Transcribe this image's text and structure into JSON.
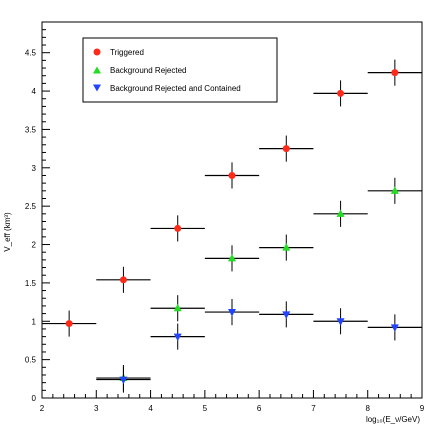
{
  "chart_data": {
    "type": "scatter",
    "xlabel": "log₁₀(E_ν/GeV)",
    "ylabel": "V_eff (km³)",
    "xlim": [
      2,
      9
    ],
    "ylim": [
      0,
      4.9
    ],
    "x_ticks": [
      "2",
      "3",
      "4",
      "5",
      "6",
      "7",
      "8",
      "9"
    ],
    "y_ticks": [
      "0",
      "0.5",
      "1",
      "1.5",
      "2",
      "2.5",
      "3",
      "3.5",
      "4",
      "4.5"
    ],
    "legend_position": "top-left",
    "grid": false,
    "series": [
      {
        "name": "Triggered",
        "marker": "circle",
        "color": "#ff2a1a",
        "points": [
          {
            "x": 2.5,
            "y": 0.97
          },
          {
            "x": 3.5,
            "y": 1.54
          },
          {
            "x": 4.5,
            "y": 2.21
          },
          {
            "x": 5.5,
            "y": 2.9
          },
          {
            "x": 6.5,
            "y": 3.25
          },
          {
            "x": 7.5,
            "y": 3.97
          },
          {
            "x": 8.5,
            "y": 4.24
          }
        ]
      },
      {
        "name": "Background Rejected",
        "marker": "triangle-up",
        "color": "#22dd22",
        "points": [
          {
            "x": 3.5,
            "y": 0.26
          },
          {
            "x": 4.5,
            "y": 1.17
          },
          {
            "x": 5.5,
            "y": 1.82
          },
          {
            "x": 6.5,
            "y": 1.96
          },
          {
            "x": 7.5,
            "y": 2.4
          },
          {
            "x": 8.5,
            "y": 2.7
          }
        ]
      },
      {
        "name": "Background Rejected and Contained",
        "marker": "triangle-down",
        "color": "#2244ff",
        "points": [
          {
            "x": 3.5,
            "y": 0.24
          },
          {
            "x": 4.5,
            "y": 0.8
          },
          {
            "x": 5.5,
            "y": 1.12
          },
          {
            "x": 6.5,
            "y": 1.09
          },
          {
            "x": 7.5,
            "y": 1.0
          },
          {
            "x": 8.5,
            "y": 0.92
          }
        ]
      }
    ]
  }
}
